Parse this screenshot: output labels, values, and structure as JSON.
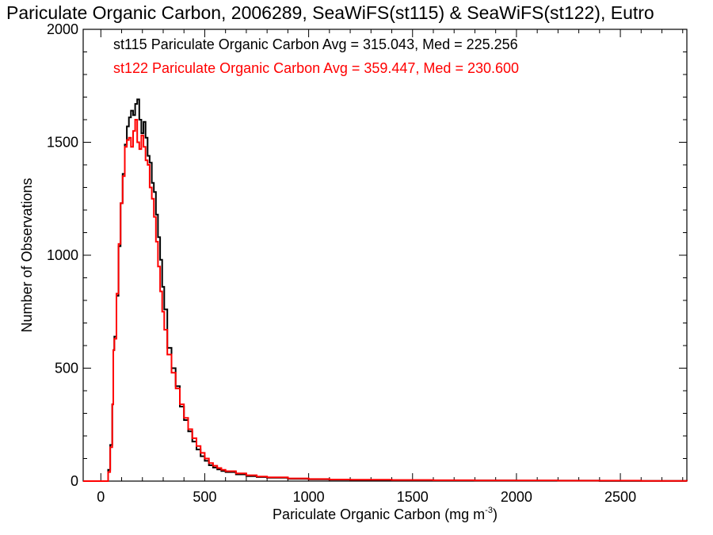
{
  "chart_data": {
    "type": "line",
    "title": "Pariculate Organic Carbon, 2006289, SeaWiFS(st115) & SeaWiFS(st122), Eutro",
    "xlabel": "Pariculate Organic Carbon (mg m",
    "xlabel_sup": "-3",
    "xlabel_tail": ")",
    "ylabel": "Number of Observations",
    "xlim": [
      -85,
      2820
    ],
    "ylim": [
      0,
      2000
    ],
    "x_ticks": [
      "0",
      "500",
      "1000",
      "1500",
      "2000",
      "2500"
    ],
    "y_ticks": [
      "0",
      "500",
      "1000",
      "1500",
      "2000"
    ],
    "legend_position": "top-left",
    "series": [
      {
        "name": "st115 Pariculate Organic Carbon Avg = 315.043, Med = 225.256",
        "color": "#000000",
        "x": [
          -85,
          25,
          35,
          45,
          55,
          60,
          65,
          75,
          85,
          95,
          105,
          115,
          125,
          135,
          145,
          155,
          165,
          175,
          185,
          195,
          205,
          215,
          225,
          235,
          245,
          255,
          265,
          275,
          285,
          295,
          305,
          320,
          340,
          360,
          380,
          400,
          420,
          440,
          460,
          480,
          500,
          520,
          540,
          560,
          580,
          600,
          650,
          700,
          750,
          800,
          900,
          1000,
          1100,
          1200,
          1400,
          1600,
          1800,
          2000,
          2200,
          2400,
          2600,
          2820
        ],
        "y": [
          0,
          0,
          50,
          160,
          340,
          580,
          640,
          820,
          1040,
          1230,
          1360,
          1490,
          1570,
          1610,
          1640,
          1620,
          1670,
          1690,
          1600,
          1540,
          1590,
          1520,
          1440,
          1410,
          1320,
          1280,
          1180,
          1080,
          980,
          860,
          760,
          590,
          500,
          420,
          330,
          270,
          220,
          175,
          140,
          110,
          90,
          70,
          60,
          52,
          45,
          40,
          30,
          22,
          18,
          15,
          10,
          8,
          6,
          5,
          4,
          3,
          3,
          2,
          2,
          1,
          1,
          0
        ]
      },
      {
        "name": "st122 Pariculate Organic Carbon Avg = 359.447, Med = 230.600",
        "color": "#ff0000",
        "x": [
          -85,
          25,
          35,
          45,
          55,
          60,
          65,
          75,
          85,
          95,
          105,
          115,
          125,
          135,
          145,
          155,
          165,
          175,
          185,
          195,
          205,
          215,
          225,
          235,
          245,
          255,
          265,
          275,
          285,
          295,
          305,
          320,
          340,
          360,
          380,
          400,
          420,
          440,
          460,
          480,
          500,
          520,
          540,
          560,
          580,
          600,
          650,
          700,
          750,
          800,
          900,
          1000,
          1100,
          1200,
          1400,
          1600,
          1800,
          2000,
          2200,
          2400,
          2600,
          2820
        ],
        "y": [
          0,
          0,
          40,
          150,
          340,
          580,
          630,
          830,
          1050,
          1230,
          1350,
          1480,
          1510,
          1520,
          1480,
          1550,
          1600,
          1500,
          1470,
          1530,
          1480,
          1420,
          1400,
          1300,
          1250,
          1170,
          1060,
          950,
          840,
          750,
          670,
          560,
          480,
          410,
          340,
          280,
          230,
          190,
          155,
          125,
          100,
          80,
          68,
          58,
          50,
          44,
          34,
          26,
          20,
          17,
          12,
          9,
          7,
          6,
          5,
          4,
          3,
          3,
          2,
          2,
          1,
          0
        ]
      }
    ]
  }
}
